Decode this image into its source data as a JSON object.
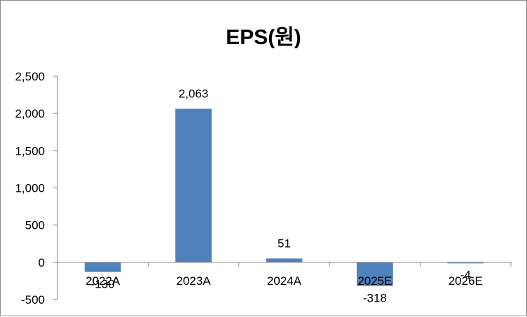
{
  "chart_data": {
    "type": "bar",
    "title": "EPS(원)",
    "categories": [
      "2022A",
      "2023A",
      "2024A",
      "2025E",
      "2026E"
    ],
    "values": [
      -130,
      2063,
      51,
      -318,
      -4
    ],
    "data_labels": [
      "-130",
      "2,063",
      "51",
      "-318",
      "-4"
    ],
    "y_ticks": [
      2500,
      2000,
      1500,
      1000,
      500,
      0,
      -500
    ],
    "y_tick_labels": [
      "2,500",
      "2,000",
      "1,500",
      "1,000",
      "500",
      "0",
      "-500"
    ],
    "ylim": [
      -500,
      2500
    ],
    "xlabel": "",
    "ylabel": "",
    "grid": false,
    "legend": "none",
    "colors": {
      "bar": "#4f81bd",
      "axis": "#868686"
    }
  }
}
